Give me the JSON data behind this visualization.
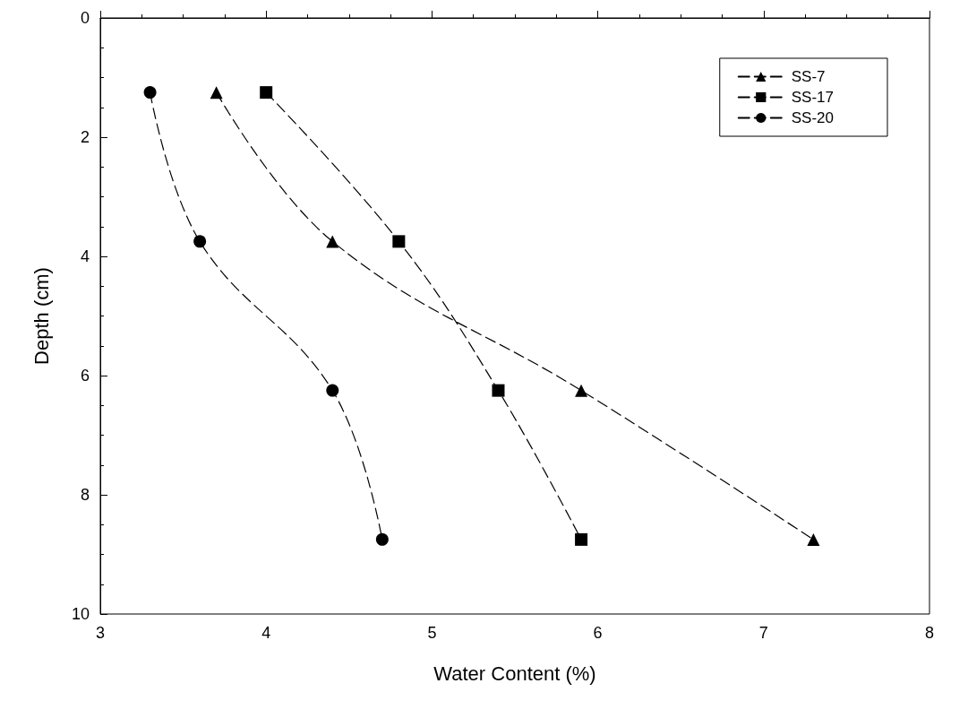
{
  "chart_data": {
    "type": "line",
    "xlabel": "Water Content (%)",
    "ylabel": "Depth (cm)",
    "xlim": [
      3,
      8
    ],
    "xticks": [
      3,
      4,
      5,
      6,
      7,
      8
    ],
    "ylim": [
      10,
      0
    ],
    "yticks": [
      0,
      2,
      4,
      6,
      8,
      10
    ],
    "grid": false,
    "legend": "top right",
    "line_style": "dashed",
    "series": [
      {
        "name": "SS-7",
        "color": "#000000",
        "marker": "triangle",
        "x": [
          3.7,
          4.4,
          5.9,
          7.3
        ],
        "values": [
          1.25,
          3.75,
          6.25,
          8.75
        ]
      },
      {
        "name": "SS-17",
        "color": "#000000",
        "marker": "square",
        "x": [
          4.0,
          4.8,
          5.4,
          5.9
        ],
        "values": [
          1.25,
          3.75,
          6.25,
          8.75
        ]
      },
      {
        "name": "SS-20",
        "color": "#000000",
        "marker": "circle",
        "x": [
          3.3,
          3.6,
          4.4,
          4.7
        ],
        "values": [
          1.25,
          3.75,
          6.25,
          8.75
        ]
      }
    ]
  }
}
